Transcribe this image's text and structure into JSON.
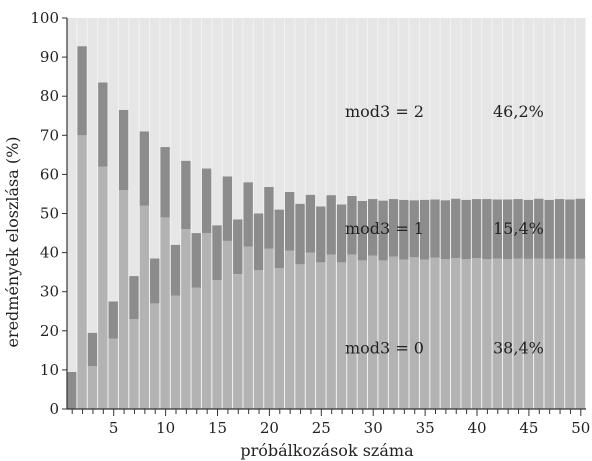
{
  "chart_data": {
    "type": "bar",
    "stacked": true,
    "normalized": true,
    "xlabel": "próbálkozások száma",
    "ylabel": "eredmények eloszlása (%)",
    "ylim": [
      0,
      100
    ],
    "x": [
      1,
      2,
      3,
      4,
      5,
      6,
      7,
      8,
      9,
      10,
      11,
      12,
      13,
      14,
      15,
      16,
      17,
      18,
      19,
      20,
      21,
      22,
      23,
      24,
      25,
      26,
      27,
      28,
      29,
      30,
      31,
      32,
      33,
      34,
      35,
      36,
      37,
      38,
      39,
      40,
      41,
      42,
      43,
      44,
      45,
      46,
      47,
      48,
      49,
      50
    ],
    "x_ticks": [
      5,
      10,
      15,
      20,
      25,
      30,
      35,
      40,
      45,
      50
    ],
    "x_tick_labels": [
      "5",
      "10",
      "15",
      "20",
      "25",
      "30",
      "35",
      "40",
      "45",
      "50"
    ],
    "y_ticks": [
      0,
      10,
      20,
      30,
      40,
      50,
      60,
      70,
      80,
      90,
      100
    ],
    "y_tick_labels": [
      "0",
      "10",
      "20",
      "30",
      "40",
      "50",
      "60",
      "70",
      "80",
      "90",
      "100"
    ],
    "series": [
      {
        "name": "mod3 = 0",
        "color": "#b3b3b3",
        "values": [
          0,
          70,
          11,
          62,
          18,
          56,
          23,
          52,
          27,
          49,
          29,
          46,
          31,
          45,
          33,
          43,
          34.5,
          41.5,
          35.5,
          41,
          36,
          40.5,
          37,
          40,
          37.5,
          39.5,
          37.5,
          39.5,
          38,
          39.2,
          38,
          39,
          38.2,
          38.8,
          38.2,
          38.7,
          38.3,
          38.6,
          38.3,
          38.6,
          38.3,
          38.5,
          38.3,
          38.5,
          38.4,
          38.5,
          38.4,
          38.5,
          38.4,
          38.4
        ]
      },
      {
        "name": "mod3 = 1",
        "color": "#8c8c8c",
        "values": [
          9.5,
          22.8,
          8.5,
          21.5,
          9.5,
          20.5,
          11,
          19,
          11.5,
          18,
          13,
          17.5,
          14,
          16.5,
          14,
          16.5,
          14,
          16.5,
          14.5,
          15.8,
          15,
          15,
          15.5,
          14.8,
          14.3,
          15.2,
          14.8,
          15,
          15.2,
          14.5,
          15.3,
          14.7,
          15.3,
          14.6,
          15.3,
          14.9,
          15.1,
          15.2,
          15.2,
          15.1,
          15.4,
          15.1,
          15.3,
          15.2,
          15.1,
          15.3,
          15.1,
          15.2,
          15.2,
          15.4
        ]
      },
      {
        "name": "mod3 = 2",
        "color": "#e6e6e6",
        "values": [
          90.5,
          7.2,
          80.5,
          16.5,
          72.5,
          23.5,
          66,
          29,
          61.5,
          33,
          58,
          36.5,
          55,
          38.5,
          53,
          40.5,
          51.5,
          42,
          50,
          43.2,
          49,
          44.5,
          47.5,
          45.2,
          48.2,
          45.3,
          47.7,
          45.5,
          46.8,
          46.3,
          46.7,
          46.3,
          46.5,
          46.6,
          46.5,
          46.4,
          46.6,
          46.2,
          46.5,
          46.3,
          46.3,
          46.4,
          46.4,
          46.3,
          46.5,
          46.2,
          46.5,
          46.3,
          46.4,
          46.2
        ]
      }
    ],
    "annotations": [
      {
        "series": "mod3 = 2",
        "label": "mod3 = 2",
        "percent": "46,2%",
        "y": 76
      },
      {
        "series": "mod3 = 1",
        "label": "mod3 = 1",
        "percent": "15,4%",
        "y": 46
      },
      {
        "series": "mod3 = 0",
        "label": "mod3 = 0",
        "percent": "38,4%",
        "y": 15.5
      }
    ]
  }
}
